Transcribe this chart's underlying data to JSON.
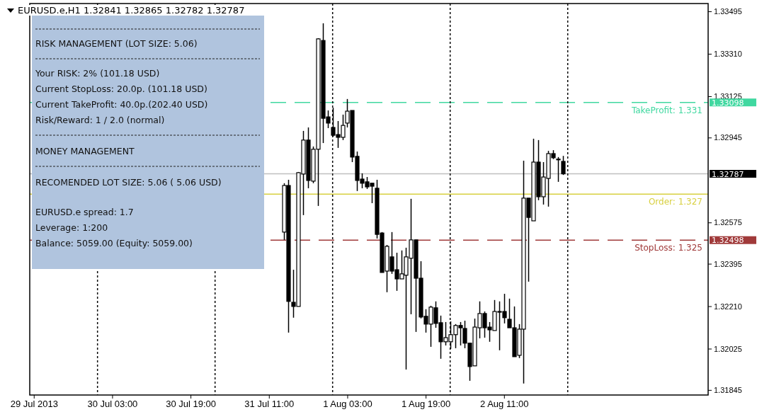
{
  "chart_data": {
    "type": "candlestick",
    "title": "EURUSD.e,H1  1.32841 1.32865 1.32782 1.32787",
    "x": [
      "2013-07-31T14:00",
      "2013-07-31T15:00",
      "2013-07-31T16:00",
      "2013-07-31T17:00",
      "2013-07-31T18:00",
      "2013-07-31T19:00",
      "2013-07-31T20:00",
      "2013-07-31T21:00",
      "2013-07-31T22:00",
      "2013-07-31T23:00",
      "2013-08-01T00:00",
      "2013-08-01T01:00",
      "2013-08-01T02:00",
      "2013-08-01T03:00",
      "2013-08-01T04:00",
      "2013-08-01T05:00",
      "2013-08-01T06:00",
      "2013-08-01T07:00",
      "2013-08-01T08:00",
      "2013-08-01T09:00",
      "2013-08-01T10:00",
      "2013-08-01T11:00",
      "2013-08-01T12:00",
      "2013-08-01T13:00",
      "2013-08-01T14:00",
      "2013-08-01T15:00",
      "2013-08-01T16:00",
      "2013-08-01T17:00",
      "2013-08-01T18:00",
      "2013-08-01T19:00",
      "2013-08-01T20:00",
      "2013-08-01T21:00",
      "2013-08-01T22:00",
      "2013-08-01T23:00",
      "2013-08-02T00:00",
      "2013-08-02T01:00",
      "2013-08-02T02:00",
      "2013-08-02T03:00",
      "2013-08-02T04:00",
      "2013-08-02T05:00",
      "2013-08-02T06:00",
      "2013-08-02T07:00",
      "2013-08-02T08:00",
      "2013-08-02T09:00",
      "2013-08-02T10:00",
      "2013-08-02T11:00",
      "2013-08-02T12:00",
      "2013-08-02T13:00",
      "2013-08-02T14:00",
      "2013-08-02T15:00",
      "2013-08-02T16:00",
      "2013-08-02T17:00",
      "2013-08-02T18:00",
      "2013-08-02T19:00",
      "2013-08-02T20:00",
      "2013-08-02T21:00",
      "2013-08-02T22:00",
      "2013-08-02T23:00"
    ],
    "ohlc": [
      [
        1.32533,
        1.32746,
        1.32499,
        1.32736
      ],
      [
        1.32736,
        1.32761,
        1.32095,
        1.32231
      ],
      [
        1.32227,
        1.32369,
        1.3216,
        1.32209
      ],
      [
        1.32209,
        1.32795,
        1.32209,
        1.32792
      ],
      [
        1.32786,
        1.32974,
        1.32607,
        1.32934
      ],
      [
        1.32934,
        1.32989,
        1.32724,
        1.32758
      ],
      [
        1.32755,
        1.32906,
        1.32746,
        1.32894
      ],
      [
        1.32894,
        1.33378,
        1.32647,
        1.33375
      ],
      [
        1.33368,
        1.33443,
        1.32921,
        1.33029
      ],
      [
        1.33035,
        1.33063,
        1.32986,
        1.33008
      ],
      [
        1.32989,
        1.33075,
        1.32949,
        1.32955
      ],
      [
        1.32958,
        1.33017,
        1.329,
        1.32946
      ],
      [
        1.32946,
        1.33045,
        1.32934,
        1.32998
      ],
      [
        1.33008,
        1.33113,
        1.32989,
        1.3306
      ],
      [
        1.33063,
        1.33063,
        1.32838,
        1.3286
      ],
      [
        1.32863,
        1.32884,
        1.32712,
        1.32758
      ],
      [
        1.32764,
        1.32789,
        1.32724,
        1.32746
      ],
      [
        1.32752,
        1.32773,
        1.32721,
        1.3273
      ],
      [
        1.32746,
        1.32746,
        1.32659,
        1.32733
      ],
      [
        1.32724,
        1.32761,
        1.32505,
        1.32523
      ],
      [
        1.32529,
        1.32533,
        1.32357,
        1.32357
      ],
      [
        1.32363,
        1.32477,
        1.32271,
        1.32471
      ],
      [
        1.32425,
        1.32533,
        1.32351,
        1.32363
      ],
      [
        1.32369,
        1.32443,
        1.32277,
        1.32329
      ],
      [
        1.32329,
        1.32453,
        1.32329,
        1.32351
      ],
      [
        1.32345,
        1.32465,
        1.31934,
        1.32425
      ],
      [
        1.32419,
        1.32678,
        1.32175,
        1.32499
      ],
      [
        1.32499,
        1.32499,
        1.32098,
        1.32332
      ],
      [
        1.32332,
        1.32406,
        1.32157,
        1.32163
      ],
      [
        1.32166,
        1.32197,
        1.32095,
        1.32132
      ],
      [
        1.32132,
        1.32212,
        1.32033,
        1.32206
      ],
      [
        1.32203,
        1.32231,
        1.32116,
        1.32135
      ],
      [
        1.32138,
        1.32169,
        1.31981,
        1.32055
      ],
      [
        1.32055,
        1.32141,
        1.32039,
        1.32073
      ],
      [
        1.32055,
        1.32144,
        1.32024,
        1.32086
      ],
      [
        1.32086,
        1.32132,
        1.32027,
        1.32126
      ],
      [
        1.32126,
        1.32141,
        1.32039,
        1.32116
      ],
      [
        1.32113,
        1.32147,
        1.32027,
        1.32049
      ],
      [
        1.32049,
        1.32049,
        1.31885,
        1.31947
      ],
      [
        1.3195,
        1.32156,
        1.3195,
        1.32119
      ],
      [
        1.32116,
        1.32231,
        1.3207,
        1.32178
      ],
      [
        1.32178,
        1.32187,
        1.32073,
        1.32116
      ],
      [
        1.32119,
        1.32141,
        1.32055,
        1.32107
      ],
      [
        1.32104,
        1.32237,
        1.32104,
        1.32187
      ],
      [
        1.32187,
        1.32231,
        1.32018,
        1.32184
      ],
      [
        1.32187,
        1.32264,
        1.32135,
        1.3216
      ],
      [
        1.32153,
        1.32243,
        1.32116,
        1.32116
      ],
      [
        1.32116,
        1.32209,
        1.3199,
        1.3199
      ],
      [
        1.31996,
        1.32132,
        1.31984,
        1.3211
      ],
      [
        1.3211,
        1.32844,
        1.31873,
        1.32681
      ],
      [
        1.32681,
        1.32681,
        1.32317,
        1.32597
      ],
      [
        1.32582,
        1.3294,
        1.32582,
        1.32838
      ],
      [
        1.32838,
        1.32934,
        1.32672,
        1.32687
      ],
      [
        1.32687,
        1.32838,
        1.32653,
        1.32773
      ],
      [
        1.32767,
        1.32887,
        1.32644,
        1.32875
      ],
      [
        1.32875,
        1.3289,
        1.32851,
        1.32857
      ],
      [
        1.32851,
        1.3286,
        1.32752,
        1.32848
      ],
      [
        1.32841,
        1.32865,
        1.32782,
        1.32787
      ]
    ],
    "xlim": [
      "2013-07-29T10:10",
      "2013-08-04T04:40"
    ],
    "xticks": [
      {
        "value": "2013-07-29T11:00",
        "label": "29 Jul 2013"
      },
      {
        "value": "2013-07-30T03:00",
        "label": "30 Jul 03:00"
      },
      {
        "value": "2013-07-30T19:00",
        "label": "30 Jul 19:00"
      },
      {
        "value": "2013-07-31T11:00",
        "label": "31 Jul 11:00"
      },
      {
        "value": "2013-08-01T03:00",
        "label": "1 Aug 03:00"
      },
      {
        "value": "2013-08-01T19:00",
        "label": "1 Aug 19:00"
      },
      {
        "value": "2013-08-02T11:00",
        "label": "2 Aug 11:00"
      }
    ],
    "ylim": [
      1.31823,
      1.33529
    ],
    "yticks": [
      1.33495,
      {
        "value": 1.3331,
        "label": "1.33310"
      },
      1.33125,
      1.32945,
      1.32575,
      1.32395,
      {
        "value": 1.3221,
        "label": "1.32210"
      },
      1.32025,
      1.31845
    ],
    "ref_lines": [
      {
        "axis": "y",
        "value": 1.33098,
        "label": "TakeProfit: 1.331",
        "color": "#40d8a0",
        "line_style": "dashed"
      },
      {
        "axis": "y",
        "value": 1.32698,
        "label": "Order: 1.327",
        "color": "#d8d040",
        "line_style": "solid"
      },
      {
        "axis": "y",
        "value": 1.32787,
        "color": "#c0c0c0",
        "line_style": "solid"
      },
      {
        "axis": "y",
        "value": 1.32498,
        "label": "StopLoss: 1.325",
        "color": "#a03a3a",
        "line_style": "dashed"
      },
      {
        "axis": "x",
        "value": "2013-07-30T00:00",
        "color": "#000000",
        "line_style": "dotted"
      },
      {
        "axis": "x",
        "value": "2013-07-31T00:00",
        "color": "#000000",
        "line_style": "dotted"
      },
      {
        "axis": "x",
        "value": "2013-08-01T00:00",
        "color": "#000000",
        "line_style": "dotted"
      },
      {
        "axis": "x",
        "value": "2013-08-02T00:00",
        "color": "#000000",
        "line_style": "dotted"
      },
      {
        "axis": "x",
        "value": "2013-08-03T00:00",
        "color": "#000000",
        "line_style": "dotted"
      }
    ],
    "annotations": [
      "RISK MANAGEMENT (LOT SIZE: 5.06)",
      "Your RISK: 2% (101.18 USD)",
      "Current StopLoss: 20.0p. (101.18 USD)",
      "Current TakeProfit: 40.0p.(202.40 USD)",
      "Risk/Reward: 1 / 2.0 (normal)",
      "MONEY MANAGEMENT",
      "RECOMENDED LOT SIZE: 5.06 ( 5.06 USD)",
      "EURUSD.e spread: 1.7",
      "Leverage: 1:200",
      "Balance: 5059.00 (Equity: 5059.00)",
      {
        "text": "1.33098",
        "x": "2013-08-04T04:40",
        "y": 1.33098
      },
      {
        "text": "1.32787",
        "x": "2013-08-04T04:40",
        "y": 1.32787
      },
      {
        "text": "1.32498",
        "x": "2013-08-04T04:40",
        "y": 1.32498
      }
    ]
  }
}
